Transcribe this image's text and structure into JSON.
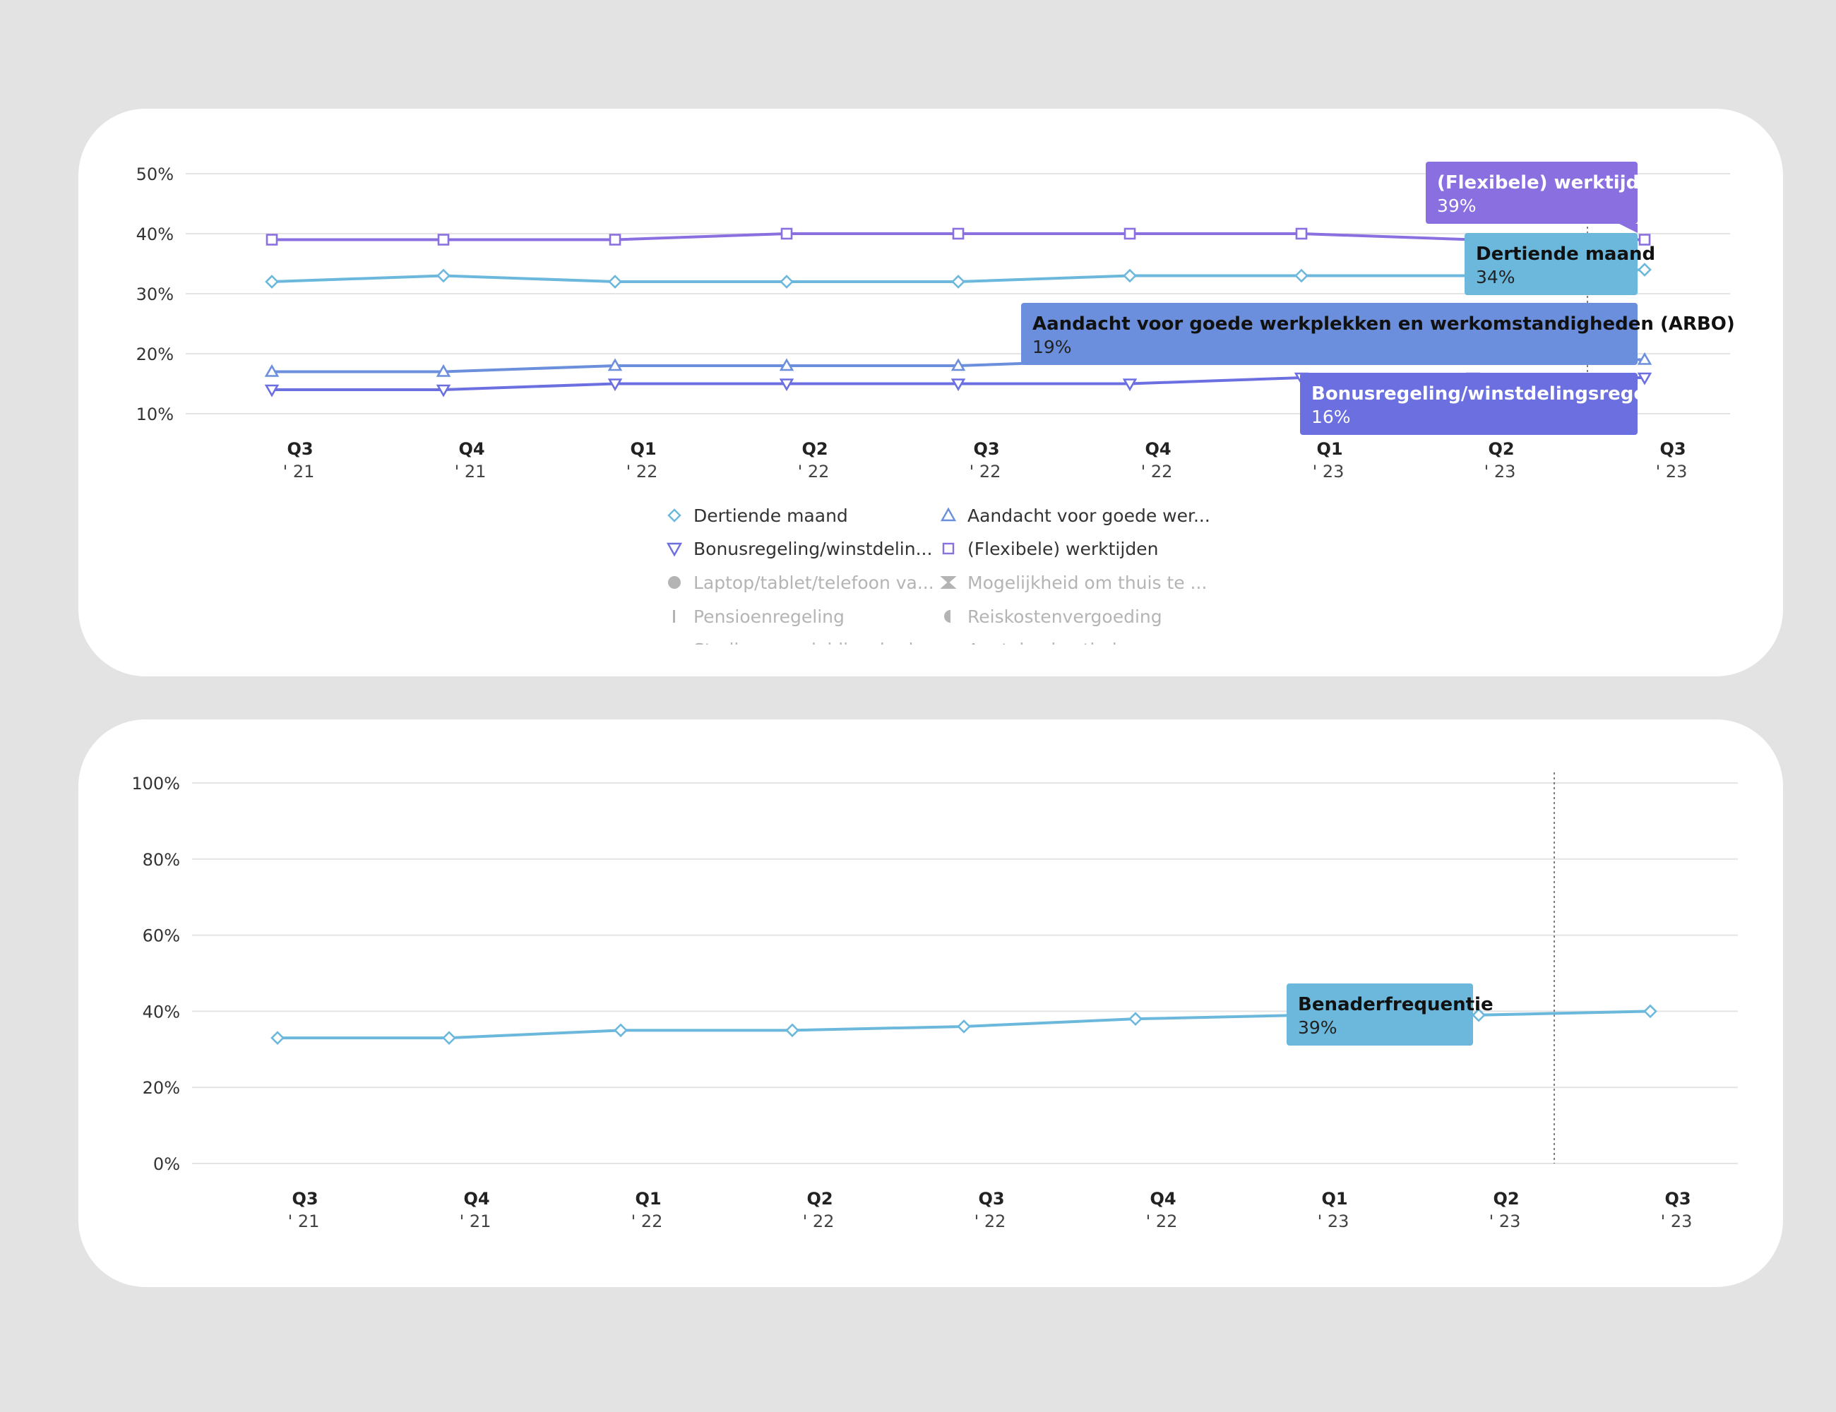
{
  "colors": {
    "background": "#e3e3e3",
    "card": "#ffffff",
    "dertiende": "#6bb8dc",
    "aandacht": "#6b8fdc",
    "bonus": "#6b6fe0",
    "flexibele": "#8a6fe0",
    "grid": "#e4e4e4",
    "legend_inactive": "#b4b4b4"
  },
  "chart_data": [
    {
      "type": "line",
      "ylim": [
        10,
        50
      ],
      "ytick_labels": [
        "50%",
        "40%",
        "30%",
        "20%",
        "10%"
      ],
      "yticks": [
        50,
        40,
        30,
        20,
        10
      ],
      "x_quarters": [
        "Q3",
        "Q4",
        "Q1",
        "Q2",
        "Q3",
        "Q4",
        "Q1",
        "Q2",
        "Q3"
      ],
      "x_years": [
        "' 21",
        "' 21",
        "' 22",
        "' 22",
        "' 22",
        "' 22",
        "' 23",
        "' 23",
        "' 23"
      ],
      "series": [
        {
          "name": "Dertiende maand",
          "color": "#6bb8dc",
          "marker": "diamond",
          "values": [
            32,
            33,
            32,
            32,
            32,
            33,
            33,
            33,
            34
          ]
        },
        {
          "name": "Aandacht voor goede werkplekken en werkomstandigheden (ARBO)",
          "color": "#6b8fdc",
          "marker": "triangle-up",
          "values": [
            17,
            17,
            18,
            18,
            18,
            19,
            19,
            19,
            19
          ]
        },
        {
          "name": "Bonusregeling/winstdelingsregeling",
          "color": "#6b6fe0",
          "marker": "triangle-down",
          "values": [
            14,
            14,
            15,
            15,
            15,
            15,
            16,
            16,
            16
          ]
        },
        {
          "name": "(Flexibele) werktijden",
          "color": "#8a6fe0",
          "marker": "square",
          "values": [
            39,
            39,
            39,
            40,
            40,
            40,
            40,
            39,
            39
          ]
        }
      ],
      "tooltips": [
        {
          "title": "(Flexibele) werktijden",
          "value": "39%"
        },
        {
          "title": "Dertiende maand",
          "value": "34%"
        },
        {
          "title": "Aandacht voor goede werkplekken en werkomstandigheden (ARBO)",
          "value": "19%"
        },
        {
          "title": "Bonusregeling/winstdelingsregeling",
          "value": "16%"
        }
      ],
      "legend": [
        {
          "label": "Dertiende maand",
          "icon": "diamond-icon",
          "active": true
        },
        {
          "label": "Aandacht voor goede wer...",
          "icon": "triangle-up-icon",
          "active": true
        },
        {
          "label": "Bonusregeling/winstdelin...",
          "icon": "triangle-down-icon",
          "active": true
        },
        {
          "label": "(Flexibele) werktijden",
          "icon": "square-icon",
          "active": true
        },
        {
          "label": "Laptop/tablet/telefoon va...",
          "icon": "circle-icon",
          "active": false
        },
        {
          "label": "Mogelijkheid om thuis te ...",
          "icon": "hourglass-icon",
          "active": false
        },
        {
          "label": "Pensioenregeling",
          "icon": "bar-icon",
          "active": false
        },
        {
          "label": "Reiskostenvergoeding",
          "icon": "half-circle-icon",
          "active": false
        },
        {
          "label": "Studie- en opleidingsbudg...",
          "icon": "dot-icon",
          "active": false
        },
        {
          "label": "Aantal vakantiedagen",
          "icon": "dot-icon",
          "active": false
        }
      ]
    },
    {
      "type": "line",
      "ylim": [
        0,
        100
      ],
      "ytick_labels": [
        "100%",
        "80%",
        "60%",
        "40%",
        "20%",
        "0%"
      ],
      "yticks": [
        100,
        80,
        60,
        40,
        20,
        0
      ],
      "x_quarters": [
        "Q3",
        "Q4",
        "Q1",
        "Q2",
        "Q3",
        "Q4",
        "Q1",
        "Q2",
        "Q3"
      ],
      "x_years": [
        "' 21",
        "' 21",
        "' 22",
        "' 22",
        "' 22",
        "' 22",
        "' 23",
        "' 23",
        "' 23"
      ],
      "series": [
        {
          "name": "Benaderfrequentie",
          "color": "#6bb8dc",
          "marker": "diamond",
          "values": [
            33,
            33,
            35,
            35,
            36,
            38,
            39,
            39,
            40
          ]
        }
      ],
      "tooltips": [
        {
          "title": "Benaderfrequentie",
          "value": "39%"
        }
      ]
    }
  ]
}
